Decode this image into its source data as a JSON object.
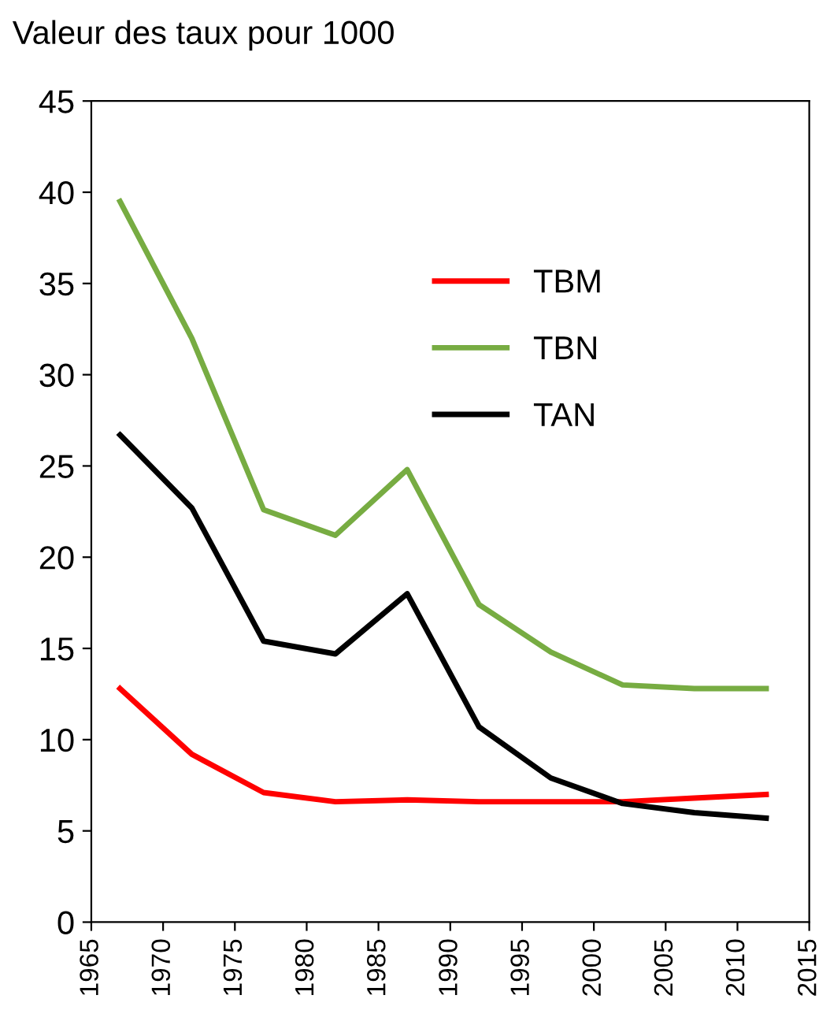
{
  "chart_data": {
    "type": "line",
    "title": "Valeur des taux pour 1000",
    "x": [
      1967,
      1972,
      1977,
      1982,
      1987,
      1992,
      1997,
      2002,
      2007,
      2012
    ],
    "series": [
      {
        "name": "TBM",
        "color": "#ff0000",
        "values": [
          12.8,
          9.2,
          7.1,
          6.6,
          6.7,
          6.6,
          6.6,
          6.6,
          6.8,
          7.0
        ]
      },
      {
        "name": "TBN",
        "color": "#77ac42",
        "values": [
          39.5,
          32.0,
          22.6,
          21.2,
          24.8,
          17.4,
          14.8,
          13.0,
          12.8,
          12.8
        ]
      },
      {
        "name": "TAN",
        "color": "#000000",
        "values": [
          26.7,
          22.7,
          15.4,
          14.7,
          18.0,
          10.7,
          7.9,
          6.5,
          6.0,
          5.7
        ]
      }
    ],
    "xlim": [
      1965,
      2015
    ],
    "xticks": [
      1965,
      1970,
      1975,
      1980,
      1985,
      1990,
      1995,
      2000,
      2005,
      2010,
      2015
    ],
    "ylim": [
      0,
      45
    ],
    "yticks": [
      0,
      5,
      10,
      15,
      20,
      25,
      30,
      35,
      40,
      45
    ],
    "grid": false,
    "legend": "top right",
    "marker": "none",
    "line_style": "solid"
  }
}
